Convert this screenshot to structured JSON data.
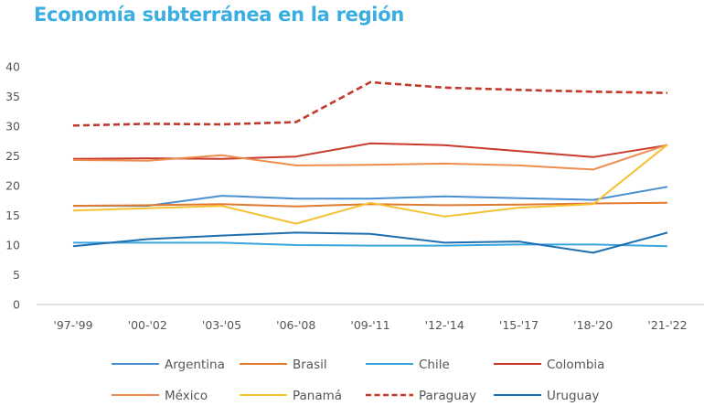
{
  "chart_data": {
    "type": "line",
    "title": "Economía subterránea en la región",
    "xlabel": "",
    "ylabel": "",
    "categories": [
      "'97-'99",
      "'00-'02",
      "'03-'05",
      "'06-'08",
      "'09-'11",
      "'12-'14",
      "'15-'17",
      "'18-'20",
      "'21-'22"
    ],
    "ylim": [
      0,
      40
    ],
    "yticks": [
      0,
      5,
      10,
      15,
      20,
      25,
      30,
      35,
      40
    ],
    "grid": false,
    "legend_position": "bottom",
    "series": [
      {
        "name": "Argentina",
        "color": "#4a8fcf",
        "dash": false,
        "values": [
          16.6,
          16.6,
          18.3,
          17.8,
          17.8,
          18.2,
          17.9,
          17.6,
          19.8
        ]
      },
      {
        "name": "Brasil",
        "color": "#e07b2f",
        "dash": false,
        "values": [
          16.6,
          16.7,
          16.9,
          16.5,
          16.9,
          16.7,
          16.8,
          17.0,
          17.1
        ]
      },
      {
        "name": "Chile",
        "color": "#3aa6de",
        "dash": false,
        "values": [
          10.4,
          10.4,
          10.4,
          10.0,
          9.9,
          9.9,
          10.1,
          10.1,
          9.8
        ]
      },
      {
        "name": "Colombia",
        "color": "#c9392b",
        "dash": false,
        "values": [
          24.5,
          24.6,
          24.5,
          24.9,
          27.1,
          26.8,
          25.8,
          24.8,
          26.8
        ]
      },
      {
        "name": "México",
        "color": "#ee8c4f",
        "dash": false,
        "values": [
          24.3,
          24.2,
          25.1,
          23.4,
          23.5,
          23.7,
          23.4,
          22.7,
          26.9
        ]
      },
      {
        "name": "Panamá",
        "color": "#f5c132",
        "dash": false,
        "values": [
          15.8,
          16.2,
          16.6,
          13.6,
          17.1,
          14.8,
          16.3,
          16.9,
          26.9
        ]
      },
      {
        "name": "Paraguay",
        "color": "#c0392b",
        "dash": true,
        "values": [
          30.1,
          30.4,
          30.3,
          30.7,
          37.4,
          36.5,
          36.1,
          35.8,
          35.6
        ]
      },
      {
        "name": "Uruguay",
        "color": "#1e6fb0",
        "dash": false,
        "values": [
          9.8,
          11.0,
          11.6,
          12.1,
          11.9,
          10.4,
          10.6,
          8.7,
          12.1
        ]
      }
    ]
  }
}
